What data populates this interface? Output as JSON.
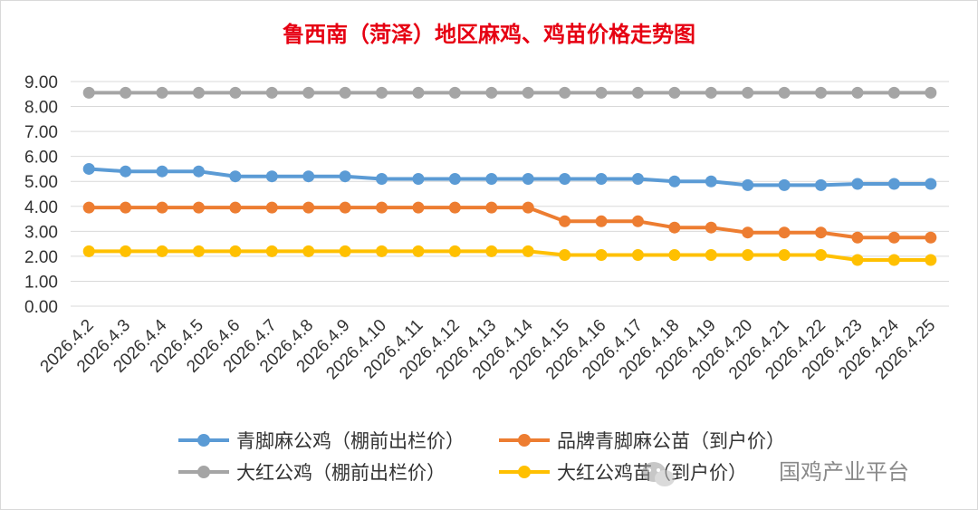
{
  "chart_data": {
    "type": "line",
    "title": "鲁西南（菏泽）地区麻鸡、鸡苗价格走势图",
    "categories": [
      "2026.4.2",
      "2026.4.3",
      "2026.4.4",
      "2026.4.5",
      "2026.4.6",
      "2026.4.7",
      "2026.4.8",
      "2026.4.9",
      "2026.4.10",
      "2026.4.11",
      "2026.4.12",
      "2026.4.13",
      "2026.4.14",
      "2026.4.15",
      "2026.4.16",
      "2026.4.17",
      "2026.4.18",
      "2026.4.19",
      "2026.4.20",
      "2026.4.21",
      "2026.4.22",
      "2026.4.23",
      "2026.4.24",
      "2026.4.25"
    ],
    "y_ticks": [
      "0.00",
      "1.00",
      "2.00",
      "3.00",
      "4.00",
      "5.00",
      "6.00",
      "7.00",
      "8.00",
      "9.00"
    ],
    "ylim": [
      0,
      9
    ],
    "grid": true,
    "legend_position": "bottom",
    "series": [
      {
        "name": "青脚麻公鸡（棚前出栏价）",
        "color": "#5b9bd5",
        "values": [
          5.5,
          5.4,
          5.4,
          5.4,
          5.2,
          5.2,
          5.2,
          5.2,
          5.1,
          5.1,
          5.1,
          5.1,
          5.1,
          5.1,
          5.1,
          5.1,
          5.0,
          5.0,
          4.85,
          4.85,
          4.85,
          4.9,
          4.9,
          4.9
        ]
      },
      {
        "name": "品牌青脚麻公苗（到户价）",
        "color": "#ed7d31",
        "values": [
          3.95,
          3.95,
          3.95,
          3.95,
          3.95,
          3.95,
          3.95,
          3.95,
          3.95,
          3.95,
          3.95,
          3.95,
          3.95,
          3.4,
          3.4,
          3.4,
          3.15,
          3.15,
          2.95,
          2.95,
          2.95,
          2.75,
          2.75,
          2.75
        ]
      },
      {
        "name": "大红公鸡（棚前出栏价）",
        "color": "#a5a5a5",
        "values": [
          8.55,
          8.55,
          8.55,
          8.55,
          8.55,
          8.55,
          8.55,
          8.55,
          8.55,
          8.55,
          8.55,
          8.55,
          8.55,
          8.55,
          8.55,
          8.55,
          8.55,
          8.55,
          8.55,
          8.55,
          8.55,
          8.55,
          8.55,
          8.55
        ]
      },
      {
        "name": "大红公鸡苗（到户价）",
        "color": "#ffc000",
        "values": [
          2.2,
          2.2,
          2.2,
          2.2,
          2.2,
          2.2,
          2.2,
          2.2,
          2.2,
          2.2,
          2.2,
          2.2,
          2.2,
          2.05,
          2.05,
          2.05,
          2.05,
          2.05,
          2.05,
          2.05,
          2.05,
          1.85,
          1.85,
          1.85
        ]
      }
    ]
  },
  "watermark": {
    "text": "国鸡产业平台",
    "icon": "wechat-icon"
  }
}
